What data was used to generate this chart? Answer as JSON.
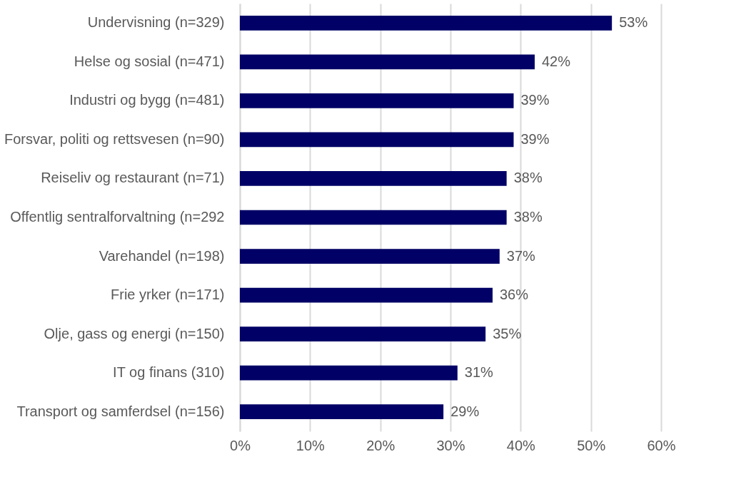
{
  "chart_data": {
    "type": "bar",
    "orientation": "horizontal",
    "categories": [
      "Undervisning (n=329)",
      "Helse og sosial (n=471)",
      "Industri og bygg (n=481)",
      "Forsvar, politi og rettsvesen (n=90)",
      "Reiseliv og restaurant (n=71)",
      "Offentlig sentralforvaltning (n=292",
      "Varehandel (n=198)",
      "Frie yrker (n=171)",
      "Olje, gass og energi (n=150)",
      "IT og finans (310)",
      "Transport og samferdsel (n=156)"
    ],
    "values": [
      53,
      42,
      39,
      39,
      38,
      38,
      37,
      36,
      35,
      31,
      29
    ],
    "value_labels": [
      "53%",
      "42%",
      "39%",
      "39%",
      "38%",
      "38%",
      "37%",
      "36%",
      "35%",
      "31%",
      "29%"
    ],
    "color": "#000066",
    "xlim": [
      0,
      60
    ],
    "xticks": [
      {
        "value": 0,
        "label": "0%"
      },
      {
        "value": 10,
        "label": "10%"
      },
      {
        "value": 20,
        "label": "20%"
      },
      {
        "value": 30,
        "label": "30%"
      },
      {
        "value": 40,
        "label": "40%"
      },
      {
        "value": 50,
        "label": "50%"
      },
      {
        "value": 60,
        "label": "60%"
      }
    ],
    "grid": "x"
  }
}
